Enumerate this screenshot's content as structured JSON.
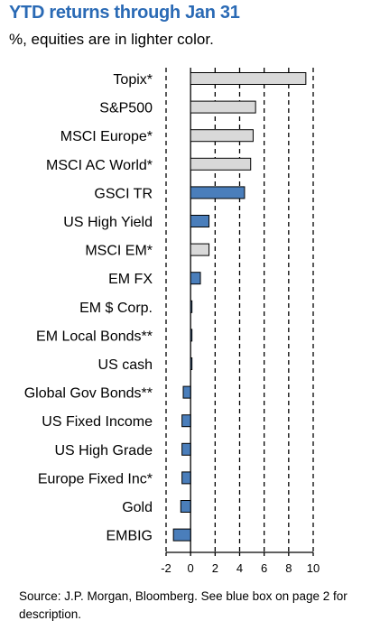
{
  "title": "YTD returns through Jan 31",
  "subtitle": "%, equities are in lighter color.",
  "source": "Source: J.P. Morgan, Bloomberg. See blue box on page 2 for description.",
  "colors": {
    "equity": "#d9d9d9",
    "other": "#4a7ebb",
    "title": "#2a6ab5"
  },
  "chart_data": {
    "type": "bar",
    "orientation": "horizontal",
    "title": "YTD returns through Jan 31",
    "subtitle": "%, equities are in lighter color.",
    "xlim": [
      -2,
      10
    ],
    "xticks": [
      -2,
      0,
      2,
      4,
      6,
      8,
      10
    ],
    "categories": [
      "Topix*",
      "S&P500",
      "MSCI Europe*",
      "MSCI AC World*",
      "GSCI TR",
      "US High Yield",
      "MSCI EM*",
      "EM FX",
      "EM $ Corp.",
      "EM Local Bonds**",
      "US cash",
      "Global Gov Bonds**",
      "US Fixed Income",
      "US High Grade",
      "Europe Fixed Inc*",
      "Gold",
      "EMBIG"
    ],
    "values": [
      9.4,
      5.3,
      5.1,
      4.9,
      4.4,
      1.5,
      1.5,
      0.8,
      0.1,
      0.1,
      0.1,
      -0.6,
      -0.7,
      -0.7,
      -0.7,
      -0.8,
      -1.4
    ],
    "is_equity": [
      true,
      true,
      true,
      true,
      false,
      false,
      true,
      false,
      false,
      false,
      false,
      false,
      false,
      false,
      false,
      false,
      false
    ],
    "grid": "dashed vertical"
  }
}
